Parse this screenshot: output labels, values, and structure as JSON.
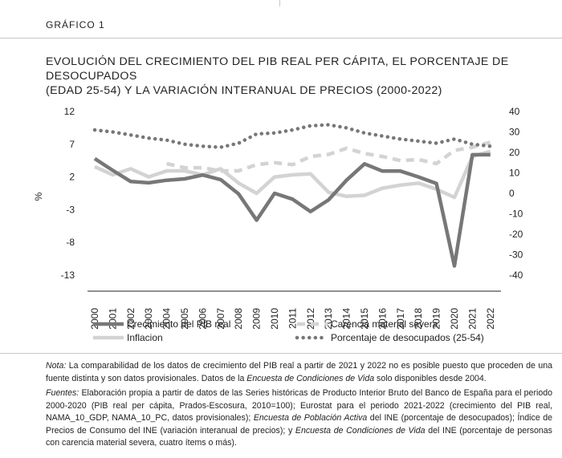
{
  "header": {
    "label": "GRÁFICO 1"
  },
  "title": {
    "line1": "EVOLUCIÓN DEL CRECIMIENTO DEL PIB REAL PER CÁPITA, EL PORCENTAJE DE DESOCUPADOS",
    "line2": "(EDAD 25-54) Y LA VARIACIÓN INTERANUAL DE PRECIOS (2000-2022)"
  },
  "chart_data": {
    "type": "line",
    "ylabel": "%",
    "categories": [
      "2000",
      "2001",
      "2002",
      "2003",
      "2004",
      "2005",
      "2006",
      "2007",
      "2008",
      "2009",
      "2010",
      "2011",
      "2012",
      "2013",
      "2014",
      "2015",
      "2016",
      "2017",
      "2018",
      "2019",
      "2020",
      "2021",
      "2022"
    ],
    "y_left": {
      "range": [
        -13,
        12
      ],
      "ticks": [
        "12",
        "7",
        "2",
        "-3",
        "-8",
        "-13"
      ]
    },
    "y_right": {
      "range": [
        -40,
        40
      ],
      "ticks": [
        "40",
        "30",
        "20",
        "10",
        "0",
        "-10",
        "-20",
        "-30",
        "-40"
      ]
    },
    "grid": false,
    "legend_position": "bottom",
    "series": [
      {
        "name": "Crecimiento del PIB real",
        "axis": "left",
        "color": "#777777",
        "style": "solid-thick",
        "values": [
          4.8,
          3.0,
          1.3,
          1.1,
          1.5,
          1.7,
          2.3,
          1.6,
          -0.6,
          -4.6,
          -0.5,
          -1.4,
          -3.3,
          -1.5,
          1.5,
          4.0,
          2.9,
          2.9,
          2.0,
          1.0,
          -11.6,
          5.4,
          5.4
        ]
      },
      {
        "name": "Carencia material severa",
        "axis": "right",
        "color": "#d3d3d3",
        "style": "dashed",
        "values": [
          null,
          null,
          null,
          null,
          14.5,
          12.5,
          12.5,
          11.0,
          11.0,
          14.0,
          15.0,
          14.0,
          18.0,
          19.0,
          22.0,
          19.5,
          18.0,
          16.0,
          16.5,
          14.5,
          21.0,
          22.5,
          25.0
        ]
      },
      {
        "name": "Inflacion",
        "axis": "right",
        "color": "#d3d3d3",
        "style": "solid",
        "values": [
          13.0,
          9.0,
          12.0,
          8.0,
          11.0,
          11.0,
          9.0,
          12.0,
          5.0,
          0.0,
          8.0,
          9.0,
          9.5,
          0.5,
          -1.5,
          -1.0,
          2.5,
          4.0,
          5.0,
          2.0,
          -2.0,
          18.0,
          20.5
        ]
      },
      {
        "name": "Porcentaje de desocupados (25-54)",
        "axis": "right",
        "color": "#777777",
        "style": "dotted",
        "values": [
          31.0,
          30.0,
          28.5,
          27.0,
          26.0,
          24.0,
          23.0,
          22.5,
          24.5,
          29.0,
          29.5,
          31.0,
          33.0,
          33.5,
          32.0,
          29.5,
          28.0,
          26.5,
          25.5,
          24.5,
          26.5,
          24.0,
          23.0
        ]
      }
    ]
  },
  "legend": {
    "items": [
      "Crecimiento del PIB real",
      "Carencia material severa",
      "Inflacion",
      "Porcentaje de desocupados (25-54)"
    ]
  },
  "notes": {
    "nota_label": "Nota:",
    "nota_text1": " La comparabilidad de los datos de crecimiento del PIB real a partir de 2021 y 2022 no es posible puesto que proceden de una fuente distinta y son datos provisionales. Datos de la ",
    "nota_italic": "Encuesta de Condiciones de Vida",
    "nota_text2": " solo disponibles desde 2004.",
    "fuentes_label": "Fuentes:",
    "fuentes_text1": " Elaboración propia a partir de datos de las Series históricas de Producto Interior Bruto del Banco de España para el periodo 2000-2020 (PIB real per cápita, Prados-Escosura, 2010=100); Eurostat para el periodo 2021-2022 (crecimiento del PIB real, NAMA_10_GDP, NAMA_10_PC, datos provisionales); ",
    "fuentes_italic1": "Encuesta de Población Activa",
    "fuentes_text2": " del INE (porcentaje de desocupados); Índice de Precios de Consumo del INE (variación interanual de precios); y ",
    "fuentes_italic2": "Encuesta de Condiciones de Vida",
    "fuentes_text3": " del INE (porcentaje de personas con carencia material severa, cuatro ítems o más)."
  }
}
